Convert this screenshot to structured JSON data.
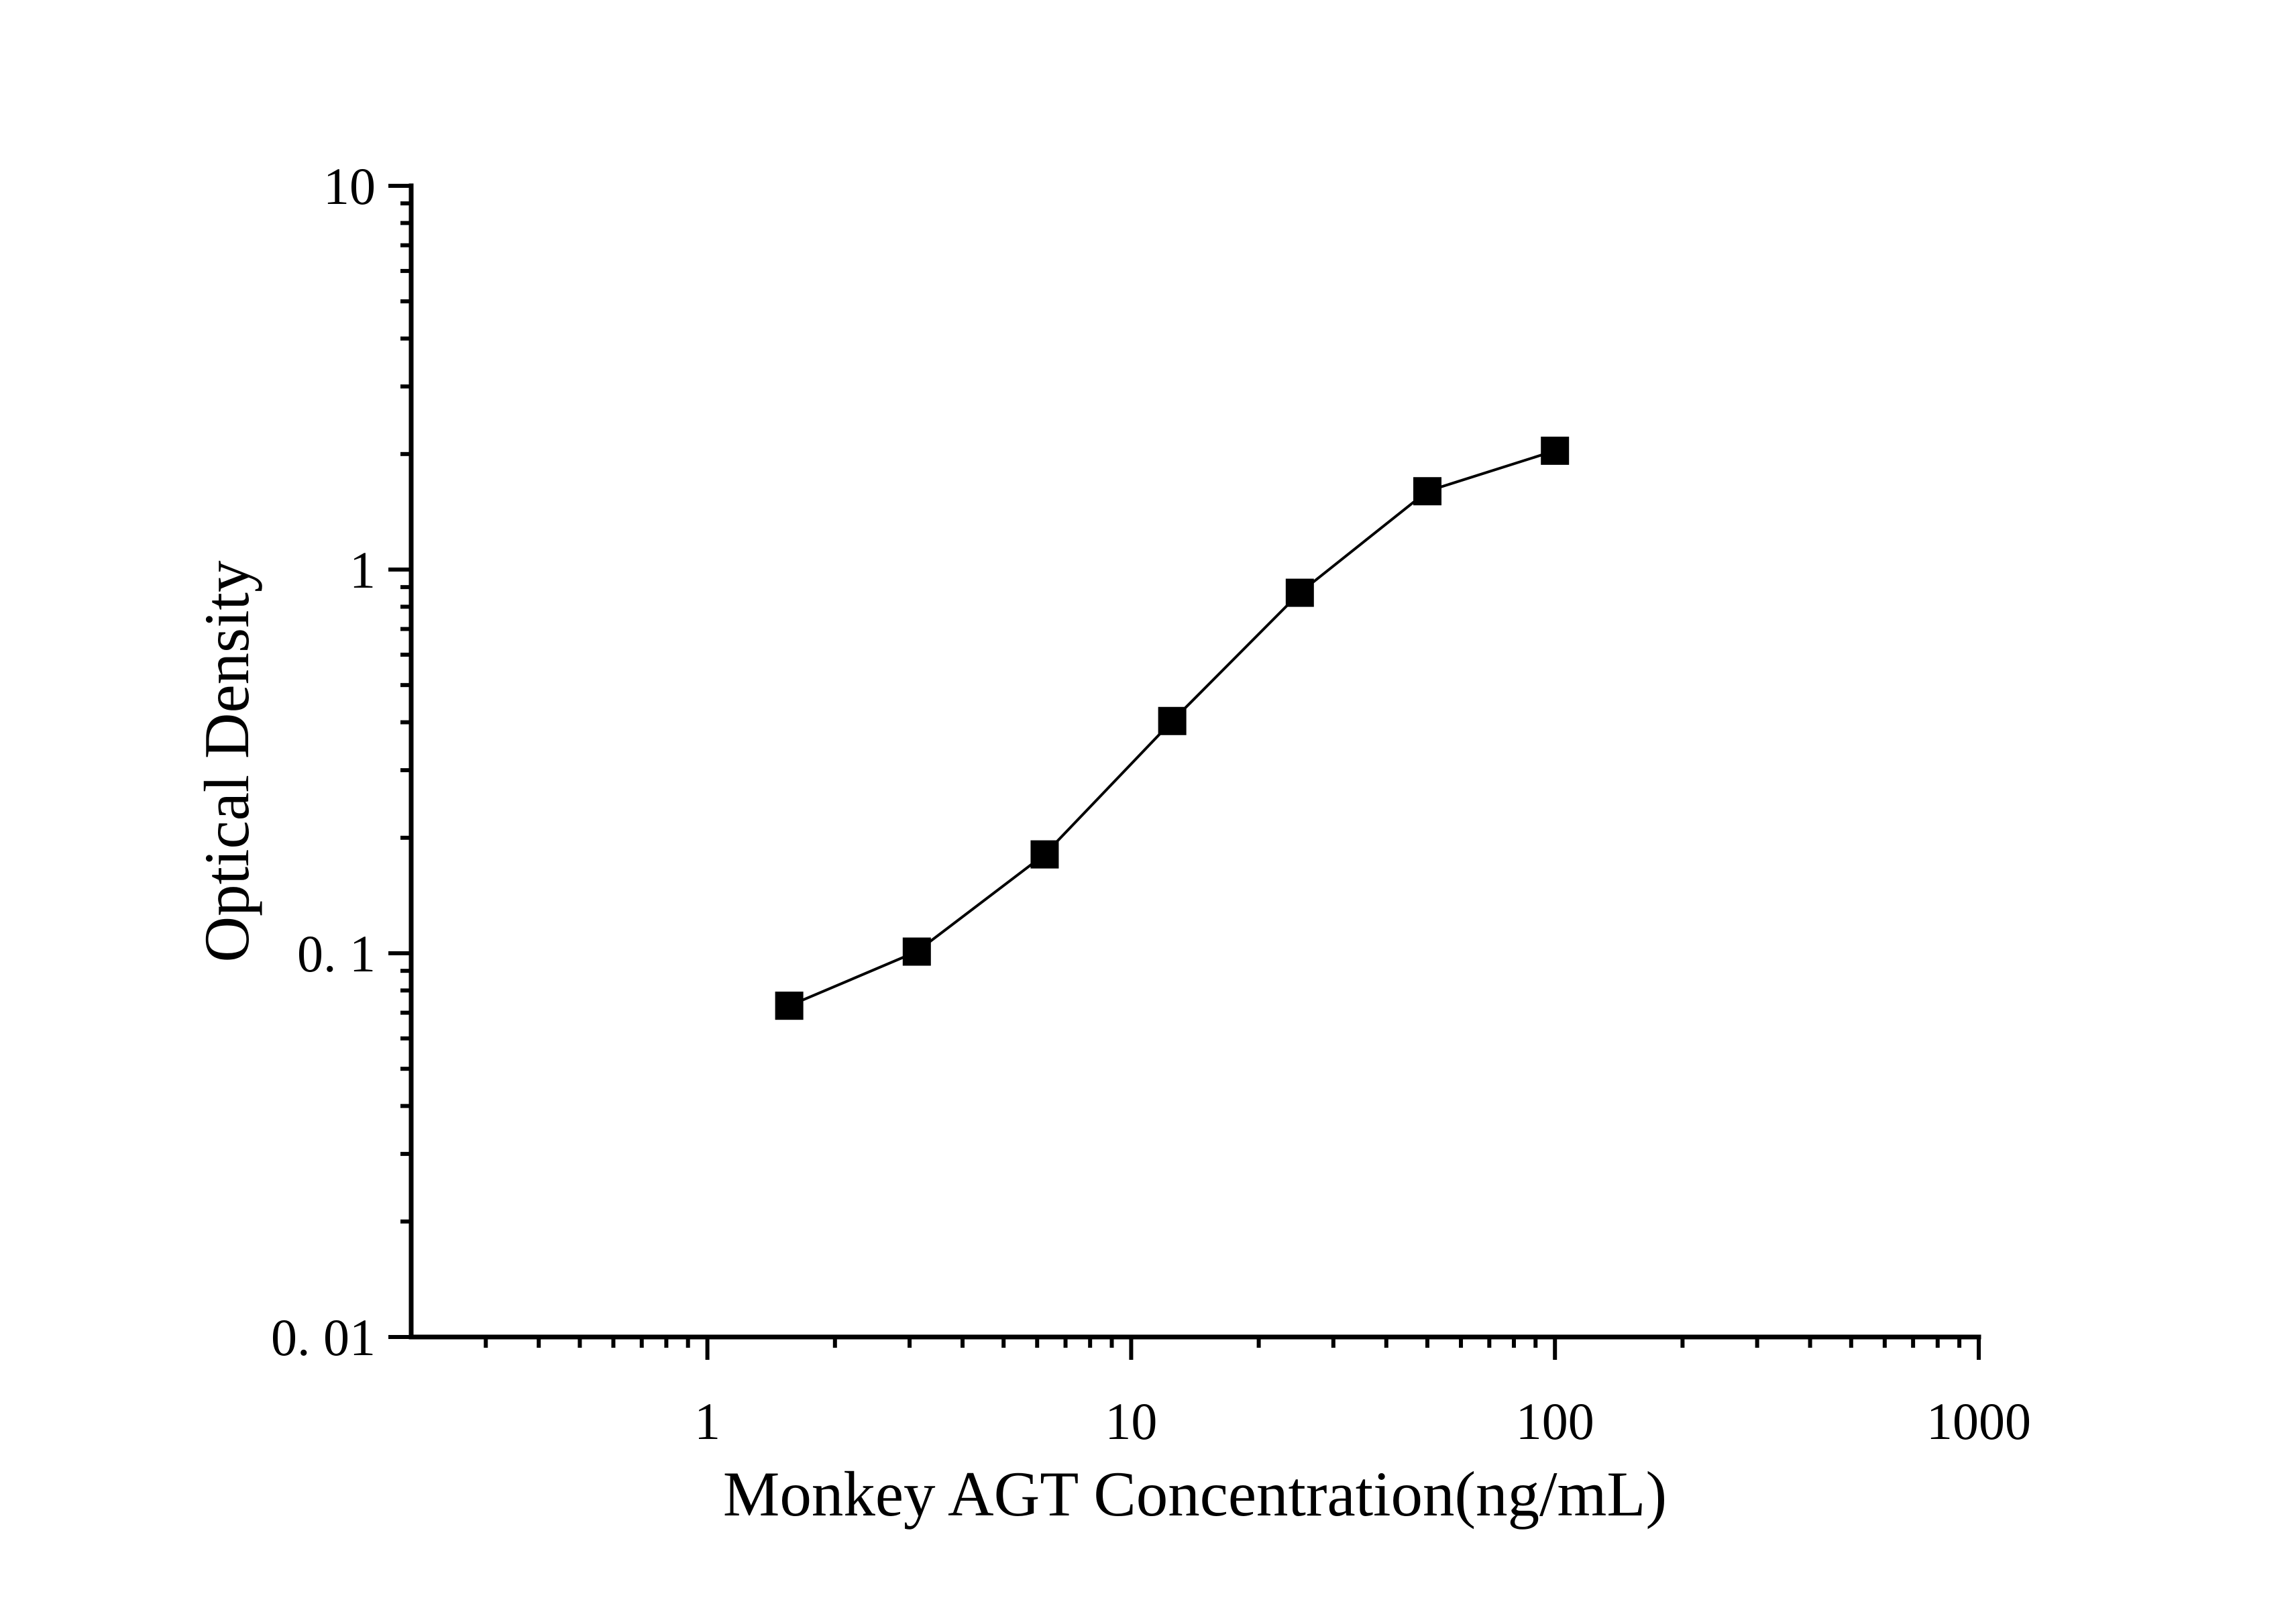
{
  "page": {
    "background": "#ffffff",
    "foreground": "#000000"
  },
  "chart_data": {
    "type": "line",
    "title": "",
    "xlabel": "Monkey AGT Concentration(ng/mL)",
    "ylabel": "Optical Density",
    "xscale": "log",
    "yscale": "log",
    "xlim": [
      0.2,
      1000
    ],
    "ylim": [
      0.01,
      10
    ],
    "grid": false,
    "marker": "filled-square",
    "color": "#000000",
    "x": [
      1.56,
      3.12,
      6.25,
      12.5,
      25,
      50,
      100
    ],
    "y": [
      0.073,
      0.101,
      0.181,
      0.403,
      0.87,
      1.6,
      2.04
    ],
    "x_ticks": {
      "values": [
        1,
        10,
        100,
        1000
      ],
      "labels": [
        "1",
        "10",
        "100",
        "1000"
      ]
    },
    "y_ticks": {
      "values": [
        10,
        1,
        0.1,
        0.01
      ],
      "labels": [
        "10",
        "1",
        "0. 1",
        "0. 01"
      ]
    }
  }
}
